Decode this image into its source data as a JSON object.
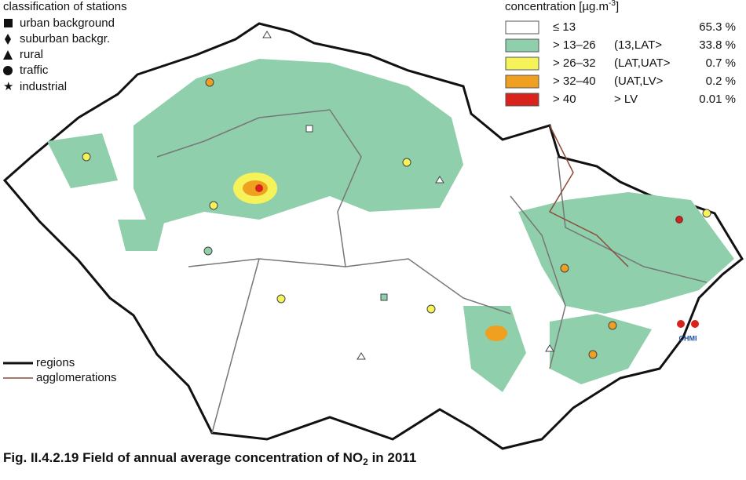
{
  "stations_legend": {
    "title": "classification of stations",
    "items": [
      "urban background",
      "suburban backgr.",
      "rural",
      "traffic",
      "industrial"
    ]
  },
  "concentration_legend": {
    "title": "concentration [µg.m",
    "title_sup": "-3",
    "title_end": "]",
    "rows": [
      {
        "range": "≤ 13",
        "share": "65.3 %"
      },
      {
        "range": "> 13–26",
        "interval": "(13,LAT>",
        "share": "33.8 %"
      },
      {
        "range": "> 26–32",
        "interval": "(LAT,UAT>",
        "share": "0.7 %"
      },
      {
        "range": "> 32–40",
        "interval": "(UAT,LV>",
        "share": "0.2 %"
      },
      {
        "range": "> 40",
        "interval": "> LV",
        "share": "0.01 %"
      }
    ]
  },
  "lines_legend": [
    "regions",
    "agglomerations"
  ],
  "logo": "CHMI",
  "caption": {
    "before": "Fig. II.4.2.19  Field of annual average concentration of NO",
    "sub": "2",
    "after": " in 2011"
  }
}
